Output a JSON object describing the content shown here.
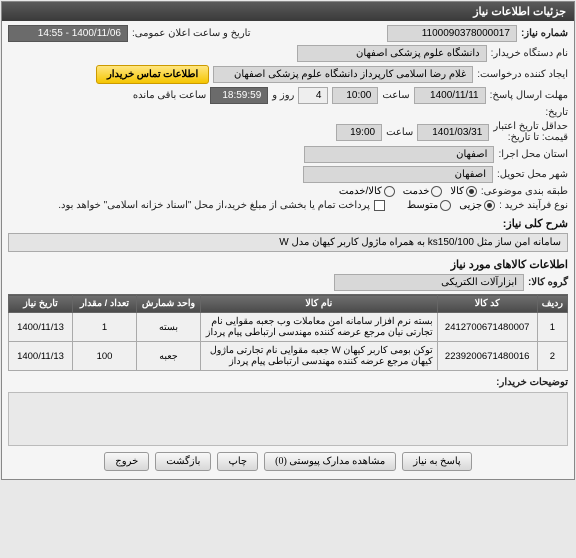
{
  "window": {
    "title": "جزئیات اطلاعات نیاز"
  },
  "fields": {
    "req_no_label": "شماره نیاز:",
    "req_no": "1100090378000017",
    "announce_label": "تاریخ و ساعت اعلان عمومی:",
    "announce_val": "1400/11/06 - 14:55",
    "buyer_label": "نام دستگاه خریدار:",
    "buyer_val": "دانشگاه علوم پزشکی اصفهان",
    "requester_label": "ایجاد کننده درخواست:",
    "requester_val": "غلام رضا اسلامی کارپرداز دانشگاه علوم پزشکی اصفهان",
    "contact_btn": "اطلاعات تماس خریدار",
    "deadline_label": "مهلت ارسال پاسخ:",
    "deadline_date": "1400/11/11",
    "time_lbl": "ساعت",
    "deadline_time": "10:00",
    "days_val": "4",
    "days_lbl": "روز و",
    "remain_time": "18:59:59",
    "remain_lbl": "ساعت باقی مانده",
    "history_lbl": "تاریخ:",
    "validity_label": "حداقل تاریخ اعتبار\nقیمت: تا تاریخ:",
    "validity_date": "1401/03/31",
    "validity_time": "19:00",
    "exec_prov_label": "استان محل اجرا:",
    "exec_prov": "اصفهان",
    "deliv_city_label": "شهر محل تحویل:",
    "deliv_city": "اصفهان",
    "category_label": "طبقه بندی موضوعی:",
    "cat_goods": "کالا",
    "cat_service": "خدمت",
    "cat_both": "کالا/خدمت",
    "purchase_type_label": "نوع فرآیند خرید :",
    "pt_small": "جزیی",
    "pt_medium": "متوسط",
    "payment_note": "پرداخت تمام یا بخشی از مبلغ خرید،از محل \"اسناد خزانه اسلامی\" خواهد بود.",
    "general_desc_label": "شرح کلی نیاز:",
    "general_desc": "سامانه امن ساز مثل ks150/100 به همراه ماژول کاربر کیهان مدل W",
    "items_head": "اطلاعات کالاهای مورد نیاز",
    "goods_group_label": "گروه کالا:",
    "goods_group": "ابزارآلات الکتریکی"
  },
  "table": {
    "headers": {
      "row": "ردیف",
      "code": "کد کالا",
      "name": "نام کالا",
      "unit": "واحد شمارش",
      "qty": "تعداد / مقدار",
      "date": "تاریخ نیاز"
    },
    "rows": [
      {
        "n": "1",
        "code": "2412700671480007",
        "name": "بسته نرم افزار سامانه امن معاملات وب جعبه مقوایی نام تجارتی نیان مرجع عرضه کننده مهندسی ارتباطی پیام پرداز",
        "unit": "بسته",
        "qty": "1",
        "date": "1400/11/13"
      },
      {
        "n": "2",
        "code": "2239200671480016",
        "name": "توکن بومی کاربر کیهان W جعبه مقوایی نام تجارتی ماژول کیهان مرجع عرضه کننده مهندسی ارتباطی پیام پرداز",
        "unit": "جعبه",
        "qty": "100",
        "date": "1400/11/13"
      }
    ]
  },
  "buyer_notes_label": "توضیحات خریدار:",
  "footer": {
    "respond": "پاسخ به نیاز",
    "attachments": "مشاهده مدارک پیوستی (0)",
    "print": "چاپ",
    "back": "بازگشت",
    "exit": "خروج"
  },
  "watermark_l1": "ستاد ایران",
  "watermark_l2": "۰۲۱-۴۱۹۳۴"
}
